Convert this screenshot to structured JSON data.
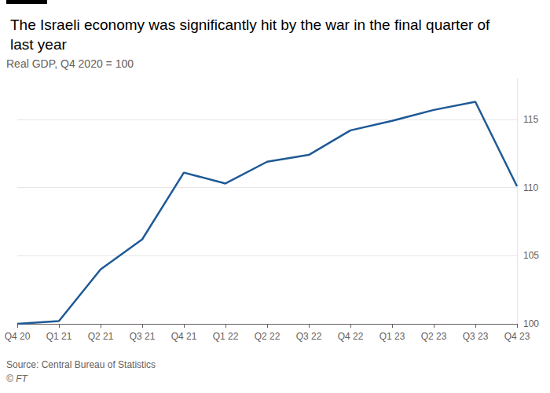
{
  "chart_data": {
    "type": "line",
    "title": "The Israeli economy was significantly hit by the war in the final quarter of last year",
    "subtitle": "Real GDP, Q4 2020 = 100",
    "source": "Source: Central Bureau of Statistics",
    "credit": "© FT",
    "categories": [
      "Q4 20",
      "Q1 21",
      "Q2 21",
      "Q3 21",
      "Q4 21",
      "Q1 22",
      "Q2 22",
      "Q3 22",
      "Q4 22",
      "Q1 23",
      "Q2 23",
      "Q3 23",
      "Q4 23"
    ],
    "values": [
      100,
      100.2,
      104.0,
      106.2,
      111.1,
      110.3,
      111.9,
      112.4,
      114.2,
      114.9,
      115.7,
      116.3,
      110.1
    ],
    "color": "#1f5a96",
    "ylim": [
      100,
      118
    ],
    "yticks": [
      100,
      105,
      110,
      115
    ],
    "grid": true
  }
}
